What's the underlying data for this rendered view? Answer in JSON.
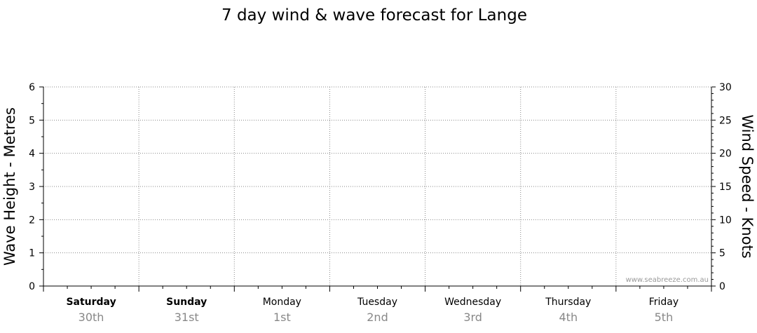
{
  "chart_data": {
    "type": "line",
    "title": "7 day wind & wave forecast for Lange",
    "ylabel_left": "Wave Height - Metres",
    "ylabel_right": "Wind Speed - Knots",
    "ylim_left": [
      0,
      6
    ],
    "ylim_right": [
      0,
      30
    ],
    "yticks_left": [
      0,
      1,
      2,
      3,
      4,
      5,
      6
    ],
    "yticks_right": [
      0,
      5,
      10,
      15,
      20,
      25,
      30
    ],
    "grid": true,
    "categories": [
      {
        "day": "Saturday",
        "date": "30th",
        "bold": true
      },
      {
        "day": "Sunday",
        "date": "31st",
        "bold": true
      },
      {
        "day": "Monday",
        "date": "1st",
        "bold": false
      },
      {
        "day": "Tuesday",
        "date": "2nd",
        "bold": false
      },
      {
        "day": "Wednesday",
        "date": "3rd",
        "bold": false
      },
      {
        "day": "Thursday",
        "date": "4th",
        "bold": false
      },
      {
        "day": "Friday",
        "date": "5th",
        "bold": false
      }
    ],
    "series": [],
    "credit": "www.seabreeze.com.au"
  }
}
